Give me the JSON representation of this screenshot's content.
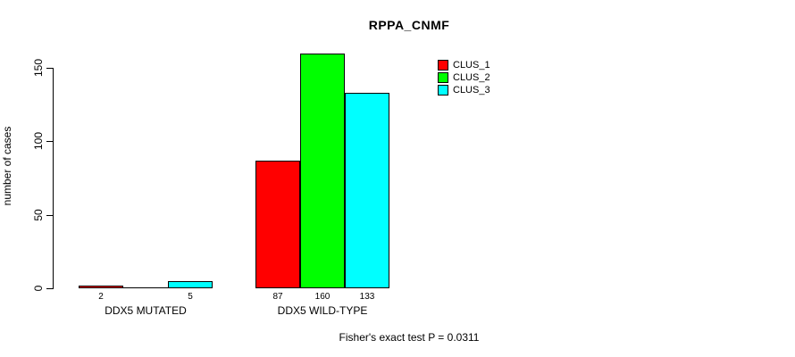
{
  "chart_data": {
    "type": "bar",
    "title": "RPPA_CNMF",
    "xlabel": "",
    "ylabel": "number of cases",
    "categories": [
      "DDX5 MUTATED",
      "DDX5 WILD-TYPE"
    ],
    "series": [
      {
        "name": "CLUS_1",
        "color": "#ff0000",
        "values": [
          2,
          87
        ]
      },
      {
        "name": "CLUS_2",
        "color": "#00ff00",
        "values": [
          0,
          160
        ]
      },
      {
        "name": "CLUS_3",
        "color": "#00ffff",
        "values": [
          5,
          133
        ]
      }
    ],
    "bar_value_labels": [
      [
        "2",
        "",
        "5"
      ],
      [
        "87",
        "160",
        "133"
      ]
    ],
    "yticks": [
      0,
      50,
      100,
      150
    ],
    "ylim": [
      0,
      160
    ],
    "grid": false,
    "legend_position": "top-right",
    "bar_border_color": "#000000",
    "background_color": "#ffffff",
    "annotation": "Fisher's exact test P = 0.0311"
  }
}
